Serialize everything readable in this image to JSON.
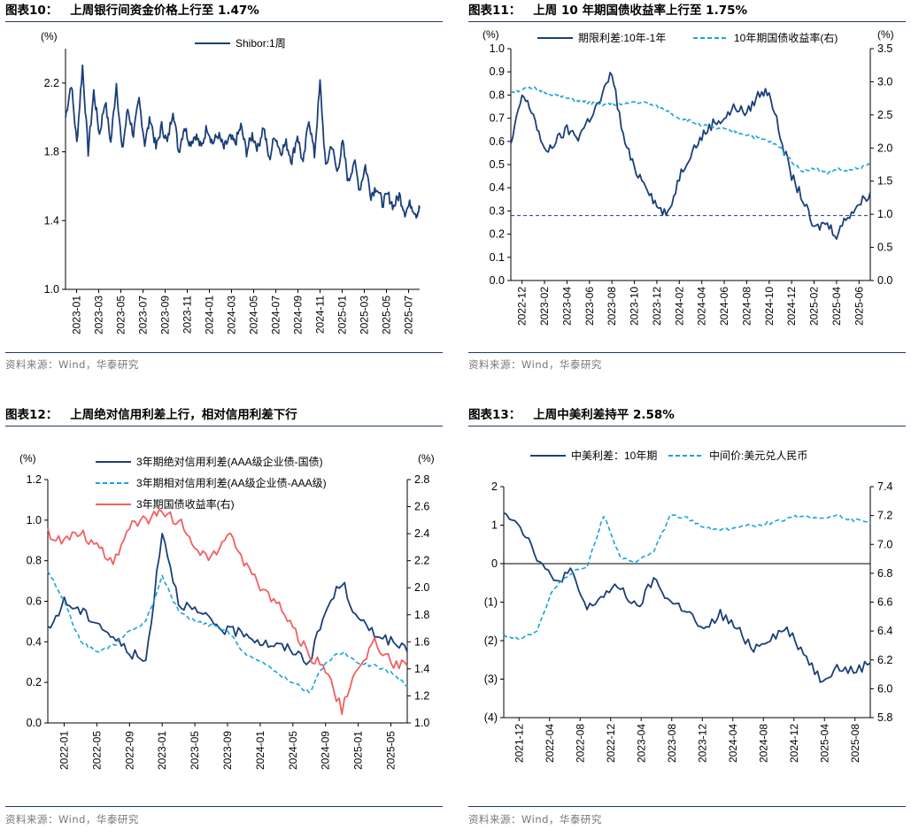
{
  "source_note": "资料来源：Wind，华泰研究",
  "colors": {
    "navy": "#1b3f7a",
    "cyan": "#1aa3dc",
    "red": "#f06060",
    "rule": "#1f3864"
  },
  "panels": [
    {
      "label": "图表10：",
      "title": "上周银行间资金价格上行至 1.47%",
      "chart_data": {
        "type": "line",
        "unit_left": "(%)",
        "ylim": [
          1.0,
          2.4
        ],
        "yticks": [
          "1.0",
          "1.4",
          "1.8",
          "2.2"
        ],
        "ytick_values": [
          1.0,
          1.4,
          1.8,
          2.2
        ],
        "x_ticks": [
          "2023-01",
          "2023-03",
          "2023-05",
          "2023-07",
          "2023-09",
          "2023-11",
          "2024-01",
          "2024-03",
          "2024-05",
          "2024-07",
          "2024-09",
          "2024-11",
          "2025-01",
          "2025-03",
          "2025-05",
          "2025-07"
        ],
        "series": [
          {
            "name": "Shibor:1周",
            "color": "#1b3f7a",
            "dash": false,
            "axis": "left",
            "x": [
              0,
              0.5,
              1,
              1.5,
              2,
              2.5,
              3,
              3.5,
              4,
              4.5,
              5,
              5.5,
              6,
              6.5,
              7,
              7.5,
              8,
              8.5,
              9,
              9.5,
              10,
              10.5,
              11,
              11.5,
              12,
              12.5,
              13,
              13.5,
              14,
              14.5,
              15,
              15.5,
              16,
              16.5,
              17,
              17.5,
              18,
              18.5,
              19,
              19.5,
              20,
              20.5,
              21,
              21.5,
              22,
              22.5,
              23,
              23.5,
              24,
              24.5,
              25,
              25.5,
              26,
              26.5,
              27,
              27.5,
              28,
              28.5,
              29,
              29.5,
              30,
              30.5,
              31,
              31.3
            ],
            "values": [
              2.0,
              2.2,
              1.85,
              2.3,
              1.8,
              2.15,
              1.9,
              2.1,
              1.85,
              2.2,
              1.8,
              2.05,
              1.9,
              2.1,
              1.85,
              2.0,
              1.82,
              1.95,
              1.85,
              2.05,
              1.8,
              1.95,
              1.85,
              1.9,
              1.82,
              1.95,
              1.85,
              1.9,
              1.82,
              1.88,
              1.85,
              1.95,
              1.8,
              1.9,
              1.82,
              1.95,
              1.75,
              1.9,
              1.8,
              1.85,
              1.75,
              1.9,
              1.72,
              2.0,
              1.78,
              2.2,
              1.7,
              1.85,
              1.68,
              1.85,
              1.62,
              1.75,
              1.58,
              1.72,
              1.55,
              1.6,
              1.5,
              1.55,
              1.48,
              1.55,
              1.45,
              1.5,
              1.44,
              1.47
            ]
          }
        ]
      }
    },
    {
      "label": "图表11：",
      "title": "上周 10 年期国债收益率上行至 1.75%",
      "chart_data": {
        "type": "line",
        "unit_left": "(%)",
        "unit_right": "(%)",
        "ylim": [
          0.0,
          1.0
        ],
        "ylim_right": [
          0.0,
          3.5
        ],
        "yticks": [
          "0.0",
          "0.1",
          "0.2",
          "0.3",
          "0.4",
          "0.5",
          "0.6",
          "0.7",
          "0.8",
          "0.9",
          "1.0"
        ],
        "ytick_values": [
          0.0,
          0.1,
          0.2,
          0.3,
          0.4,
          0.5,
          0.6,
          0.7,
          0.8,
          0.9,
          1.0
        ],
        "yticks_right": [
          "0.0",
          "0.5",
          "1.0",
          "1.5",
          "2.0",
          "2.5",
          "3.0",
          "3.5"
        ],
        "ytick_values_right": [
          0.0,
          0.5,
          1.0,
          1.5,
          2.0,
          2.5,
          3.0,
          3.5
        ],
        "reference_line": 0.28,
        "x_ticks": [
          "2022-12",
          "2023-02",
          "2023-04",
          "2023-06",
          "2023-08",
          "2023-10",
          "2023-12",
          "2024-02",
          "2024-04",
          "2024-06",
          "2024-08",
          "2024-10",
          "2024-12",
          "2025-02",
          "2025-04",
          "2025-06"
        ],
        "series": [
          {
            "name": "期限利差:10年-1年",
            "color": "#1b3f7a",
            "dash": false,
            "axis": "left",
            "x": [
              0,
              0.5,
              1,
              1.5,
              2,
              2.5,
              3,
              3.5,
              4,
              4.5,
              5,
              5.5,
              6,
              6.5,
              7,
              7.5,
              8,
              8.5,
              9,
              9.5,
              10,
              10.5,
              11,
              11.5,
              12,
              12.5,
              13,
              13.5,
              14,
              14.5,
              15,
              15.5,
              16
            ],
            "values": [
              0.58,
              0.8,
              0.72,
              0.55,
              0.6,
              0.65,
              0.62,
              0.7,
              0.78,
              0.9,
              0.62,
              0.48,
              0.42,
              0.32,
              0.28,
              0.45,
              0.55,
              0.62,
              0.68,
              0.7,
              0.75,
              0.72,
              0.8,
              0.82,
              0.62,
              0.45,
              0.35,
              0.22,
              0.25,
              0.2,
              0.28,
              0.33,
              0.38
            ]
          },
          {
            "name": "10年期国债收益率(右)",
            "color": "#1aa3dc",
            "dash": true,
            "axis": "right",
            "x": [
              0,
              0.5,
              1,
              1.5,
              2,
              2.5,
              3,
              3.5,
              4,
              4.5,
              5,
              5.5,
              6,
              6.5,
              7,
              7.5,
              8,
              8.5,
              9,
              9.5,
              10,
              10.5,
              11,
              11.5,
              12,
              12.5,
              13,
              13.5,
              14,
              14.5,
              15,
              15.5,
              16
            ],
            "values": [
              2.85,
              2.88,
              2.9,
              2.85,
              2.8,
              2.75,
              2.72,
              2.68,
              2.65,
              2.67,
              2.65,
              2.7,
              2.68,
              2.62,
              2.55,
              2.45,
              2.4,
              2.35,
              2.3,
              2.28,
              2.25,
              2.2,
              2.15,
              2.1,
              2.0,
              1.8,
              1.65,
              1.7,
              1.62,
              1.68,
              1.65,
              1.7,
              1.75
            ]
          }
        ]
      }
    },
    {
      "label": "图表12：",
      "title": "上周绝对信用利差上行，相对信用利差下行",
      "chart_data": {
        "type": "line",
        "unit_left": "(%)",
        "unit_right": "(%)",
        "ylim": [
          0.0,
          1.2
        ],
        "ylim_right": [
          1.0,
          2.8
        ],
        "yticks": [
          "0.0",
          "0.2",
          "0.4",
          "0.6",
          "0.8",
          "1.0",
          "1.2"
        ],
        "ytick_values": [
          0.0,
          0.2,
          0.4,
          0.6,
          0.8,
          1.0,
          1.2
        ],
        "yticks_right": [
          "1.0",
          "1.2",
          "1.4",
          "1.6",
          "1.8",
          "2.0",
          "2.2",
          "2.4",
          "2.6",
          "2.8"
        ],
        "ytick_values_right": [
          1.0,
          1.2,
          1.4,
          1.6,
          1.8,
          2.0,
          2.2,
          2.4,
          2.6,
          2.8
        ],
        "x_ticks": [
          "2022-01",
          "2022-05",
          "2022-09",
          "2023-01",
          "2023-05",
          "2023-09",
          "2024-01",
          "2024-05",
          "2024-09",
          "2025-01",
          "2025-05"
        ],
        "series": [
          {
            "name": "3年期绝对信用利差(AAA级企业债-国债)",
            "color": "#1b3f7a",
            "dash": false,
            "axis": "left",
            "x": [
              0,
              0.5,
              1,
              1.5,
              2,
              2.5,
              3,
              3.5,
              4,
              4.5,
              5,
              5.5,
              6,
              6.5,
              7,
              7.5,
              8,
              8.5,
              9,
              9.5,
              10,
              10.5,
              11
            ],
            "values": [
              0.45,
              0.6,
              0.55,
              0.5,
              0.42,
              0.35,
              0.3,
              0.95,
              0.6,
              0.55,
              0.5,
              0.45,
              0.45,
              0.4,
              0.38,
              0.36,
              0.3,
              0.55,
              0.7,
              0.5,
              0.45,
              0.4,
              0.35
            ]
          },
          {
            "name": "3年期相对信用利差(AA级企业债-AAA级)",
            "color": "#1aa3dc",
            "dash": true,
            "axis": "left",
            "x": [
              0,
              0.5,
              1,
              1.5,
              2,
              2.5,
              3,
              3.5,
              4,
              4.5,
              5,
              5.5,
              6,
              6.5,
              7,
              7.5,
              8,
              8.5,
              9,
              9.5,
              10,
              10.5,
              11
            ],
            "values": [
              0.75,
              0.6,
              0.4,
              0.35,
              0.38,
              0.45,
              0.5,
              0.72,
              0.55,
              0.5,
              0.48,
              0.45,
              0.35,
              0.3,
              0.25,
              0.2,
              0.15,
              0.3,
              0.35,
              0.3,
              0.28,
              0.25,
              0.18
            ]
          },
          {
            "name": "3年期国债收益率(右)",
            "color": "#f06060",
            "dash": false,
            "axis": "right",
            "x": [
              0,
              0.5,
              1,
              1.5,
              2,
              2.5,
              3,
              3.5,
              4,
              4.5,
              5,
              5.5,
              6,
              6.5,
              7,
              7.5,
              8,
              8.5,
              9,
              9.5,
              10,
              10.5,
              11
            ],
            "values": [
              2.4,
              2.35,
              2.42,
              2.3,
              2.2,
              2.45,
              2.5,
              2.55,
              2.5,
              2.3,
              2.2,
              2.4,
              2.2,
              2.0,
              1.9,
              1.7,
              1.5,
              1.4,
              1.1,
              1.4,
              1.6,
              1.45,
              1.42
            ]
          }
        ]
      }
    },
    {
      "label": "图表13：",
      "title": "上周中美利差持平 2.58%",
      "chart_data": {
        "type": "line",
        "ylim": [
          -4,
          2
        ],
        "ylim_right": [
          5.8,
          7.4
        ],
        "yticks": [
          "(4)",
          "(3)",
          "(2)",
          "(1)",
          "0",
          "1",
          "2"
        ],
        "ytick_values": [
          -4,
          -3,
          -2,
          -1,
          0,
          1,
          2
        ],
        "yticks_right": [
          "5.8",
          "6.0",
          "6.2",
          "6.4",
          "6.6",
          "6.8",
          "7.0",
          "7.2",
          "7.4"
        ],
        "ytick_values_right": [
          5.8,
          6.0,
          6.2,
          6.4,
          6.6,
          6.8,
          7.0,
          7.2,
          7.4
        ],
        "x_ticks": [
          "2021-12",
          "2022-04",
          "2022-08",
          "2022-12",
          "2023-04",
          "2023-08",
          "2023-12",
          "2024-04",
          "2024-08",
          "2024-12",
          "2025-04",
          "2025-08"
        ],
        "series": [
          {
            "name": "中美利差：10年期",
            "color": "#1b3f7a",
            "dash": false,
            "axis": "left",
            "x": [
              0,
              0.5,
              1,
              1.5,
              2,
              2.5,
              3,
              3.5,
              4,
              4.5,
              5,
              5.5,
              6,
              6.5,
              7,
              7.5,
              8,
              8.5,
              9,
              9.5,
              10,
              10.5,
              11
            ],
            "values": [
              1.4,
              1.0,
              0.2,
              -0.5,
              -0.2,
              -1.2,
              -0.8,
              -0.6,
              -1.2,
              -0.4,
              -1.0,
              -1.2,
              -1.8,
              -1.3,
              -1.7,
              -2.2,
              -1.9,
              -1.7,
              -2.3,
              -3.0,
              -2.7,
              -2.8,
              -2.58
            ]
          },
          {
            "name": "中间价:美元兑人民币",
            "color": "#1aa3dc",
            "dash": true,
            "axis": "right",
            "x": [
              0,
              0.5,
              1,
              1.5,
              2,
              2.5,
              3,
              3.5,
              4,
              4.5,
              5,
              5.5,
              6,
              6.5,
              7,
              7.5,
              8,
              8.5,
              9,
              9.5,
              10,
              10.5,
              11
            ],
            "values": [
              6.37,
              6.35,
              6.4,
              6.7,
              6.8,
              6.85,
              7.2,
              6.9,
              6.88,
              6.95,
              7.2,
              7.18,
              7.12,
              7.1,
              7.12,
              7.13,
              7.15,
              7.18,
              7.2,
              7.18,
              7.2,
              7.17,
              7.14
            ]
          }
        ]
      }
    }
  ]
}
